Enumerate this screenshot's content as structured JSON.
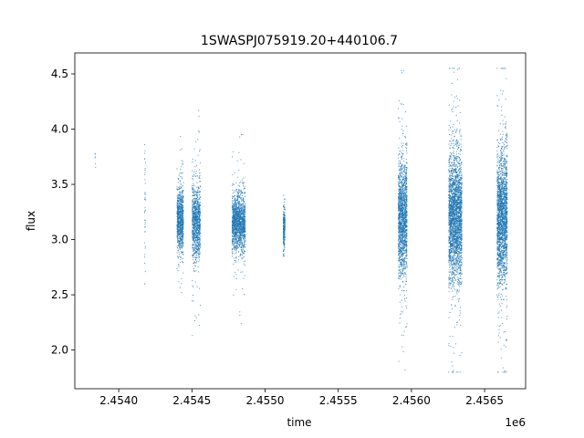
{
  "chart_data": {
    "type": "scatter",
    "title": "1SWASPJ075919.20+440106.7",
    "xlabel": "time",
    "ylabel": "flux",
    "x_offset_label": "1e6",
    "xlim": [
      2453700,
      2456780
    ],
    "ylim": [
      1.65,
      4.69
    ],
    "x_ticks": [
      2.454,
      2.4545,
      2.455,
      2.4555,
      2.456,
      2.4565
    ],
    "x_tick_labels": [
      "2.4540",
      "2.4545",
      "2.4550",
      "2.4555",
      "2.4560",
      "2.4565"
    ],
    "y_ticks": [
      2.0,
      2.5,
      3.0,
      3.5,
      4.0,
      4.5
    ],
    "y_tick_labels": [
      "2.0",
      "2.5",
      "3.0",
      "3.5",
      "4.0",
      "4.5"
    ],
    "grid": false,
    "legend": false,
    "marker_color": "#1f77b4",
    "series": [
      {
        "clusters": [
          {
            "x_center": 2453840,
            "x_spread": 3,
            "flux_center": 3.75,
            "flux_sd": 0.06,
            "n": 6,
            "flux_min": 3.62,
            "flux_max": 3.85
          },
          {
            "x_center": 2454180,
            "x_spread": 4,
            "flux_center": 3.35,
            "flux_sd": 0.35,
            "n": 40,
            "flux_min": 2.6,
            "flux_max": 4.05
          },
          {
            "x_center": 2454420,
            "x_spread": 22,
            "flux_center": 3.18,
            "flux_sd": 0.14,
            "n": 900,
            "flux_min": 2.05,
            "flux_max": 4.5
          },
          {
            "x_center": 2454530,
            "x_spread": 28,
            "flux_center": 3.15,
            "flux_sd": 0.17,
            "n": 1000,
            "flux_min": 1.85,
            "flux_max": 4.5
          },
          {
            "x_center": 2454820,
            "x_spread": 45,
            "flux_center": 3.15,
            "flux_sd": 0.12,
            "n": 1500,
            "flux_min": 1.85,
            "flux_max": 3.95
          },
          {
            "x_center": 2455130,
            "x_spread": 6,
            "flux_center": 3.12,
            "flux_sd": 0.1,
            "n": 250,
            "flux_min": 2.85,
            "flux_max": 3.45
          },
          {
            "x_center": 2455940,
            "x_spread": 30,
            "flux_center": 3.2,
            "flux_sd": 0.25,
            "n": 1600,
            "flux_min": 1.82,
            "flux_max": 4.53
          },
          {
            "x_center": 2456300,
            "x_spread": 45,
            "flux_center": 3.2,
            "flux_sd": 0.28,
            "n": 2600,
            "flux_min": 1.8,
            "flux_max": 4.55
          },
          {
            "x_center": 2456620,
            "x_spread": 35,
            "flux_center": 3.2,
            "flux_sd": 0.28,
            "n": 2100,
            "flux_min": 1.8,
            "flux_max": 4.55
          }
        ]
      }
    ]
  }
}
